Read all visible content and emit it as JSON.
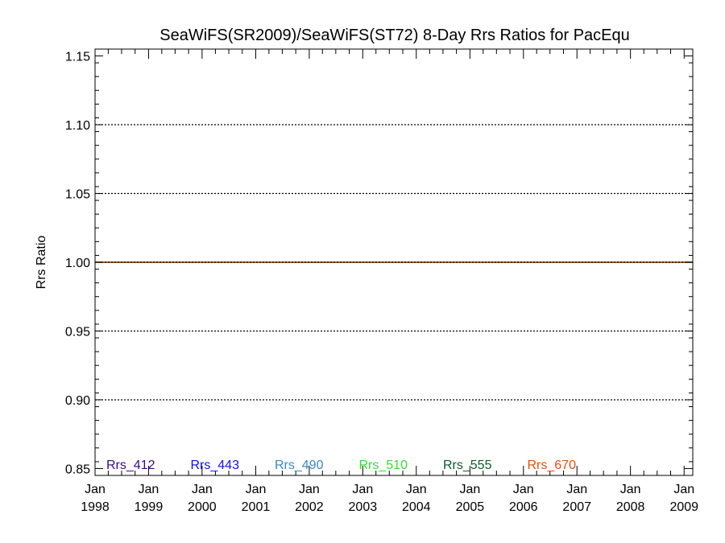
{
  "chart_data": {
    "type": "line",
    "title": "SeaWiFS(SR2009)/SeaWiFS(ST72) 8-Day Rrs Ratios for PacEqu",
    "xlabel": "",
    "ylabel": "Rrs Ratio",
    "xlim": [
      "1998-01-01",
      "2009-03-01"
    ],
    "ylim": [
      0.845,
      1.155
    ],
    "x_ticks": [
      {
        "date": "1998-01-01",
        "month": "Jan",
        "year": "1998"
      },
      {
        "date": "1999-01-01",
        "month": "Jan",
        "year": "1999"
      },
      {
        "date": "2000-01-01",
        "month": "Jan",
        "year": "2000"
      },
      {
        "date": "2001-01-01",
        "month": "Jan",
        "year": "2001"
      },
      {
        "date": "2002-01-01",
        "month": "Jan",
        "year": "2002"
      },
      {
        "date": "2003-01-01",
        "month": "Jan",
        "year": "2003"
      },
      {
        "date": "2004-01-01",
        "month": "Jan",
        "year": "2004"
      },
      {
        "date": "2005-01-01",
        "month": "Jan",
        "year": "2005"
      },
      {
        "date": "2006-01-01",
        "month": "Jan",
        "year": "2006"
      },
      {
        "date": "2007-01-01",
        "month": "Jan",
        "year": "2007"
      },
      {
        "date": "2008-01-01",
        "month": "Jan",
        "year": "2008"
      },
      {
        "date": "2009-01-01",
        "month": "Jan",
        "year": "2009"
      }
    ],
    "y_ticks": [
      {
        "value": 0.85,
        "label": "0.85"
      },
      {
        "value": 0.9,
        "label": "0.90"
      },
      {
        "value": 0.95,
        "label": "0.95"
      },
      {
        "value": 1.0,
        "label": "1.00"
      },
      {
        "value": 1.05,
        "label": "1.05"
      },
      {
        "value": 1.1,
        "label": "1.10"
      },
      {
        "value": 1.15,
        "label": "1.15"
      }
    ],
    "y_minor_step": 0.01,
    "grid": "dotted horizontal at major y ticks",
    "legend": "bottom-left, inline row inside plot",
    "series": [
      {
        "name": "Rrs_412",
        "color": "#3a0a8a",
        "x": [
          "1998-01-01",
          "2009-03-01"
        ],
        "y": [
          1.0,
          1.0
        ]
      },
      {
        "name": "Rrs_443",
        "color": "#1010ee",
        "x": [
          "1998-01-01",
          "2009-03-01"
        ],
        "y": [
          1.0,
          1.0
        ]
      },
      {
        "name": "Rrs_490",
        "color": "#3a88c8",
        "x": [
          "1998-01-01",
          "2009-03-01"
        ],
        "y": [
          1.0,
          1.0
        ]
      },
      {
        "name": "Rrs_510",
        "color": "#33dd33",
        "x": [
          "1998-01-01",
          "2009-03-01"
        ],
        "y": [
          1.0,
          1.0
        ]
      },
      {
        "name": "Rrs_555",
        "color": "#0a5a2a",
        "x": [
          "1998-01-01",
          "2009-03-01"
        ],
        "y": [
          1.0,
          1.0
        ]
      },
      {
        "name": "Rrs_670",
        "color": "#e05010",
        "x": [
          "1998-01-01",
          "2009-03-01"
        ],
        "y": [
          1.0,
          1.0
        ]
      }
    ]
  }
}
